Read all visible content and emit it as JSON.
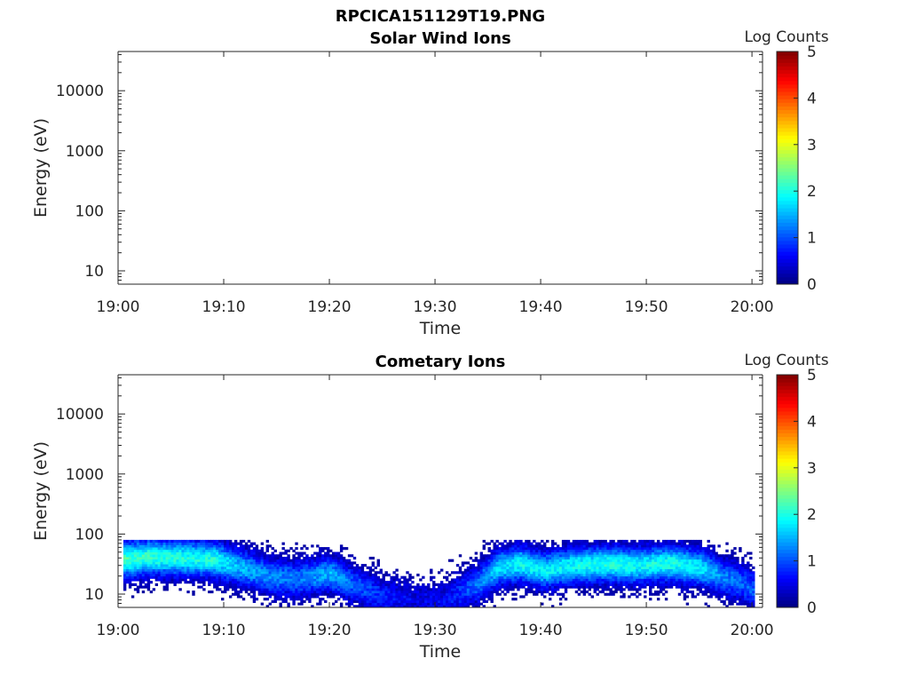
{
  "figure": {
    "title": "RPCICA151129T19.PNG"
  },
  "colorbar": {
    "label": "Log Counts",
    "ticks": [
      "0",
      "1",
      "2",
      "3",
      "4",
      "5"
    ],
    "range": [
      0,
      5
    ],
    "colormap": "jet"
  },
  "chart_data": [
    {
      "type": "heatmap",
      "title": "Solar Wind Ions",
      "xlabel": "Time",
      "ylabel": "Energy (eV)",
      "x_ticks": [
        "19:00",
        "19:10",
        "19:20",
        "19:30",
        "19:40",
        "19:50",
        "20:00"
      ],
      "xlim_minutes": [
        0,
        61
      ],
      "y_ticks": [
        "10",
        "100",
        "1000",
        "10000"
      ],
      "y_scale": "log",
      "ylim": [
        6,
        45000
      ],
      "z_label": "Log Counts",
      "zlim": [
        0,
        5
      ],
      "data_summary": "no counts recorded (empty panel)"
    },
    {
      "type": "heatmap",
      "title": "Cometary Ions",
      "xlabel": "Time",
      "ylabel": "Energy (eV)",
      "x_ticks": [
        "19:00",
        "19:10",
        "19:20",
        "19:30",
        "19:40",
        "19:50",
        "20:00"
      ],
      "xlim_minutes": [
        0,
        61
      ],
      "y_ticks": [
        "10",
        "100",
        "1000",
        "10000"
      ],
      "y_scale": "log",
      "ylim": [
        6,
        45000
      ],
      "z_label": "Log Counts",
      "zlim": [
        0,
        5
      ],
      "data_summary": "ion counts present only below ~80 eV; peak log counts ~2 around 30-50 eV",
      "band_profile": {
        "time_minutes": [
          0.5,
          3,
          6,
          9,
          11,
          14,
          17,
          20,
          22,
          25,
          28,
          31,
          34,
          36,
          38,
          40,
          43,
          46,
          49,
          52,
          55,
          57,
          59,
          60
        ],
        "peak_energy_eV": [
          38,
          42,
          40,
          38,
          30,
          20,
          18,
          22,
          15,
          9,
          8,
          8,
          15,
          28,
          32,
          25,
          30,
          32,
          30,
          33,
          28,
          20,
          15,
          12
        ],
        "peak_log_counts": [
          2.1,
          2.0,
          1.9,
          1.9,
          1.5,
          1.2,
          1.1,
          1.4,
          1.0,
          0.7,
          0.4,
          0.5,
          1.1,
          1.6,
          1.8,
          1.7,
          1.8,
          1.9,
          1.8,
          1.9,
          1.7,
          1.2,
          1.0,
          1.0
        ],
        "upper_cutoff_eV": 80,
        "lower_cutoff_eV": 6
      }
    }
  ]
}
